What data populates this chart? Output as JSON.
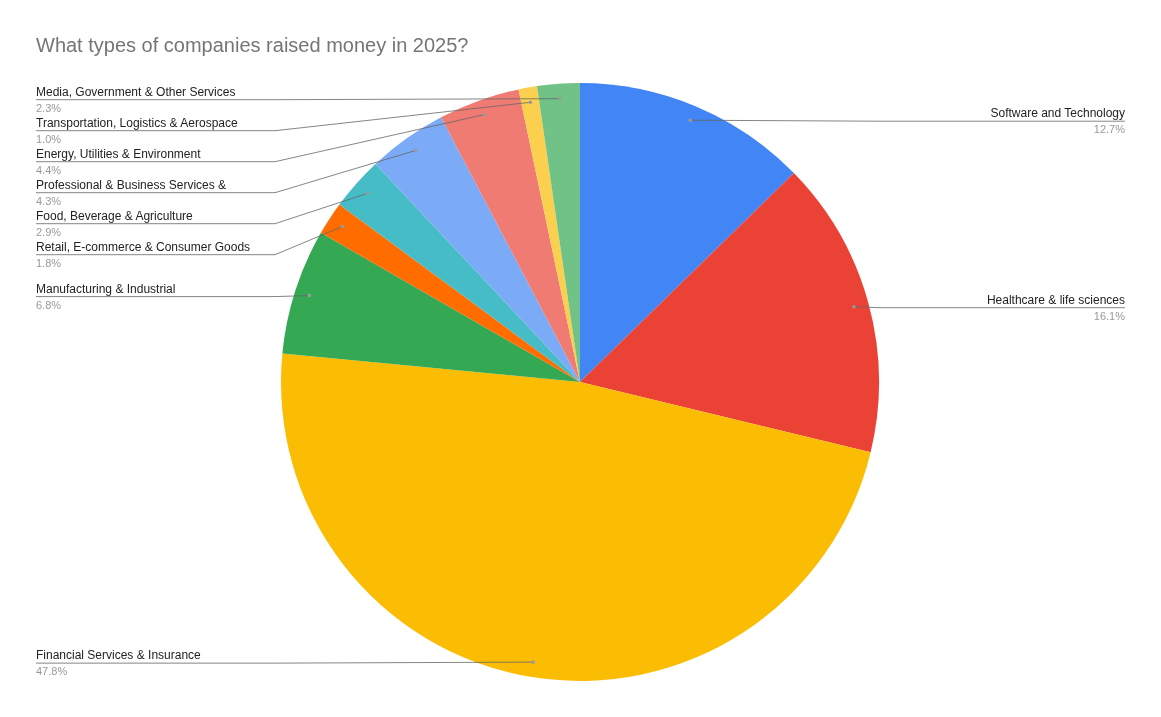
{
  "chart_data": {
    "type": "pie",
    "title": "What types of companies raised money in 2025?",
    "categories": [
      "Software and Technology",
      "Healthcare & life sciences",
      "Financial Services & Insurance",
      "Manufacturing & Industrial",
      "Retail, E-commerce & Consumer Goods",
      "Food, Beverage & Agriculture",
      "Professional & Business Services &",
      "Energy, Utilities & Environment",
      "Transportation, Logistics & Aerospace",
      "Media, Government & Other Services"
    ],
    "values": [
      12.7,
      16.1,
      47.8,
      6.8,
      1.8,
      2.9,
      4.3,
      4.4,
      1.0,
      2.3
    ],
    "value_labels": [
      "12.7%",
      "16.1%",
      "47.8%",
      "6.8%",
      "1.8%",
      "2.9%",
      "4.3%",
      "4.4%",
      "1.0%",
      "2.3%"
    ],
    "colors": [
      "#4285f4",
      "#ea4335",
      "#fbbc04",
      "#34a853",
      "#ff6d01",
      "#46bdc6",
      "#7baaf7",
      "#f07b72",
      "#fcd04f",
      "#71c287"
    ]
  }
}
